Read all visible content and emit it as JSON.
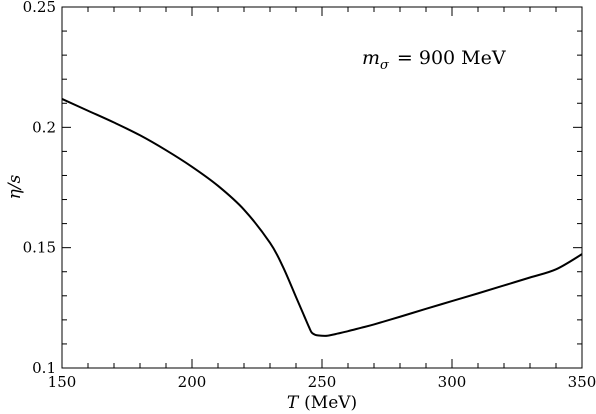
{
  "chart_data": {
    "type": "line",
    "title": "",
    "xlabel_var": "T",
    "xlabel_unit": "(MeV)",
    "ylabel": "η/s",
    "xlim": [
      150,
      350
    ],
    "ylim": [
      0.1,
      0.25
    ],
    "x_major_ticks": [
      150,
      200,
      250,
      300,
      350
    ],
    "x_tick_labels": [
      "150",
      "200",
      "250",
      "300",
      "350"
    ],
    "x_minor_step": 10,
    "y_major_ticks": [
      0.1,
      0.15,
      0.2,
      0.25
    ],
    "y_tick_labels": [
      "0.1",
      "0.15",
      "0.2",
      "0.25"
    ],
    "y_minor_step": 0.01,
    "grid": false,
    "annotation": {
      "symbol": "m",
      "subscript": "σ",
      "text": "= 900 MeV"
    },
    "series": [
      {
        "x": [
          150,
          160,
          170,
          180,
          190,
          200,
          210,
          220,
          230,
          235,
          240,
          243,
          245,
          246,
          247,
          248,
          250,
          252,
          254,
          256,
          260,
          265,
          270,
          280,
          290,
          300,
          310,
          320,
          330,
          340,
          350
        ],
        "y": [
          0.2118,
          0.2069,
          0.202,
          0.1967,
          0.1905,
          0.1836,
          0.1757,
          0.1658,
          0.152,
          0.142,
          0.1295,
          0.122,
          0.117,
          0.1148,
          0.114,
          0.1136,
          0.1134,
          0.1134,
          0.1138,
          0.1143,
          0.1153,
          0.1167,
          0.1181,
          0.1213,
          0.1246,
          0.1278,
          0.131,
          0.1343,
          0.1376,
          0.141,
          0.1473
        ]
      }
    ]
  }
}
